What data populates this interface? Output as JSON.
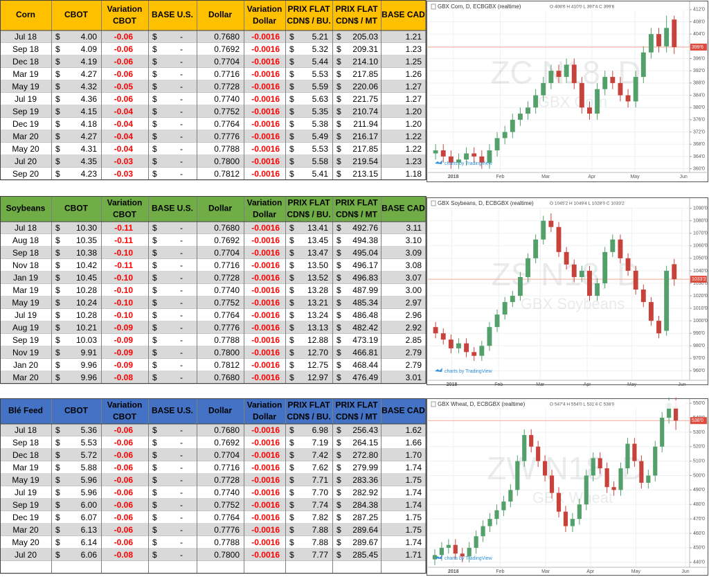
{
  "tables": [
    {
      "header_color": "#FFC000",
      "currency": "$",
      "dash": "-",
      "headers": [
        "Corn",
        "CBOT",
        [
          "Variation",
          "CBOT"
        ],
        "BASE U.S.",
        "Dollar",
        [
          "Variation",
          "Dollar"
        ],
        [
          "PRIX FLAT",
          "CDN$ / BU."
        ],
        [
          "PRIX FLAT",
          "CDN$ / MT"
        ],
        "BASE CAD"
      ],
      "rows": [
        [
          "Jul 18",
          "4.00",
          "-0.06",
          "0.7680",
          "-0.0016",
          "5.21",
          "205.03",
          "1.21"
        ],
        [
          "Sep 18",
          "4.09",
          "-0.06",
          "0.7692",
          "-0.0016",
          "5.32",
          "209.31",
          "1.23"
        ],
        [
          "Dec 18",
          "4.19",
          "-0.06",
          "0.7704",
          "-0.0016",
          "5.44",
          "214.10",
          "1.25"
        ],
        [
          "Mar 19",
          "4.27",
          "-0.06",
          "0.7716",
          "-0.0016",
          "5.53",
          "217.85",
          "1.26"
        ],
        [
          "May 19",
          "4.32",
          "-0.05",
          "0.7728",
          "-0.0016",
          "5.59",
          "220.06",
          "1.27"
        ],
        [
          "Jul 19",
          "4.36",
          "-0.06",
          "0.7740",
          "-0.0016",
          "5.63",
          "221.75",
          "1.27"
        ],
        [
          "Sep 19",
          "4.15",
          "-0.04",
          "0.7752",
          "-0.0016",
          "5.35",
          "210.74",
          "1.20"
        ],
        [
          "Dec 19",
          "4.18",
          "-0.04",
          "0.7764",
          "-0.0016",
          "5.38",
          "211.94",
          "1.20"
        ],
        [
          "Mar 20",
          "4.27",
          "-0.04",
          "0.7776",
          "-0.0016",
          "5.49",
          "216.17",
          "1.22"
        ],
        [
          "May 20",
          "4.31",
          "-0.04",
          "0.7788",
          "-0.0016",
          "5.53",
          "217.85",
          "1.22"
        ],
        [
          "Jul 20",
          "4.35",
          "-0.03",
          "0.7800",
          "-0.0016",
          "5.58",
          "219.54",
          "1.23"
        ],
        [
          "Sep 20",
          "4.23",
          "-0.03",
          "0.7812",
          "-0.0016",
          "5.41",
          "213.15",
          "1.18"
        ]
      ]
    },
    {
      "header_color": "#70AD47",
      "currency": "$",
      "dash": "-",
      "headers": [
        "Soybeans",
        "CBOT",
        [
          "Variation",
          "CBOT"
        ],
        "BASE U.S.",
        "Dollar",
        [
          "Variation",
          "Dollar"
        ],
        [
          "PRIX FLAT",
          "CDN$ / BU."
        ],
        [
          "PRIX FLAT",
          "CDN$ / MT"
        ],
        "BASE CAD"
      ],
      "rows": [
        [
          "Jul 18",
          "10.30",
          "-0.11",
          "0.7680",
          "-0.0016",
          "13.41",
          "492.76",
          "3.11"
        ],
        [
          "Aug 18",
          "10.35",
          "-0.11",
          "0.7692",
          "-0.0016",
          "13.45",
          "494.38",
          "3.10"
        ],
        [
          "Sep 18",
          "10.38",
          "-0.10",
          "0.7704",
          "-0.0016",
          "13.47",
          "495.04",
          "3.09"
        ],
        [
          "Nov 18",
          "10.42",
          "-0.11",
          "0.7716",
          "-0.0016",
          "13.50",
          "496.17",
          "3.08"
        ],
        [
          "Jan 19",
          "10.45",
          "-0.10",
          "0.7728",
          "-0.0016",
          "13.52",
          "496.83",
          "3.07"
        ],
        [
          "Mar 19",
          "10.28",
          "-0.10",
          "0.7740",
          "-0.0016",
          "13.28",
          "487.99",
          "3.00"
        ],
        [
          "May 19",
          "10.24",
          "-0.10",
          "0.7752",
          "-0.0016",
          "13.21",
          "485.34",
          "2.97"
        ],
        [
          "Jul 19",
          "10.28",
          "-0.10",
          "0.7764",
          "-0.0016",
          "13.24",
          "486.48",
          "2.96"
        ],
        [
          "Aug 19",
          "10.21",
          "-0.09",
          "0.7776",
          "-0.0016",
          "13.13",
          "482.42",
          "2.92"
        ],
        [
          "Sep 19",
          "10.03",
          "-0.09",
          "0.7788",
          "-0.0016",
          "12.88",
          "473.19",
          "2.85"
        ],
        [
          "Nov 19",
          "9.91",
          "-0.09",
          "0.7800",
          "-0.0016",
          "12.70",
          "466.81",
          "2.79"
        ],
        [
          "Jan 20",
          "9.96",
          "-0.09",
          "0.7812",
          "-0.0016",
          "12.75",
          "468.44",
          "2.79"
        ],
        [
          "Mar 20",
          "9.96",
          "-0.08",
          "0.7680",
          "-0.0016",
          "12.97",
          "476.49",
          "3.01"
        ]
      ]
    },
    {
      "header_color": "#4472C4",
      "currency": "$",
      "dash": "-",
      "headers": [
        "Blé Feed",
        "CBOT",
        [
          "Variation",
          "CBOT"
        ],
        "BASE U.S.",
        "Dollar",
        [
          "Variation",
          "Dollar"
        ],
        [
          "PRIX FLAT",
          "CDN$ / BU."
        ],
        [
          "PRIX FLAT",
          "CDN$ / MT"
        ],
        "BASE CAD"
      ],
      "rows": [
        [
          "Jul 18",
          "5.36",
          "-0.06",
          "0.7680",
          "-0.0016",
          "6.98",
          "256.43",
          "1.62"
        ],
        [
          "Sep 18",
          "5.53",
          "-0.06",
          "0.7692",
          "-0.0016",
          "7.19",
          "264.15",
          "1.66"
        ],
        [
          "Dec 18",
          "5.72",
          "-0.06",
          "0.7704",
          "-0.0016",
          "7.42",
          "272.80",
          "1.70"
        ],
        [
          "Mar 19",
          "5.88",
          "-0.06",
          "0.7716",
          "-0.0016",
          "7.62",
          "279.99",
          "1.74"
        ],
        [
          "May 19",
          "5.96",
          "-0.06",
          "0.7728",
          "-0.0016",
          "7.71",
          "283.36",
          "1.75"
        ],
        [
          "Jul 19",
          "5.96",
          "-0.06",
          "0.7740",
          "-0.0016",
          "7.70",
          "282.92",
          "1.74"
        ],
        [
          "Sep 19",
          "6.00",
          "-0.06",
          "0.7752",
          "-0.0016",
          "7.74",
          "284.38",
          "1.74"
        ],
        [
          "Dec 19",
          "6.07",
          "-0.06",
          "0.7764",
          "-0.0016",
          "7.82",
          "287.25",
          "1.75"
        ],
        [
          "Mar 20",
          "6.13",
          "-0.06",
          "0.7776",
          "-0.0016",
          "7.88",
          "289.64",
          "1.75"
        ],
        [
          "May 20",
          "6.14",
          "-0.06",
          "0.7788",
          "-0.0016",
          "7.88",
          "289.67",
          "1.74"
        ],
        [
          "Jul 20",
          "6.06",
          "-0.08",
          "0.7800",
          "-0.0016",
          "7.77",
          "285.45",
          "1.71"
        ]
      ]
    }
  ],
  "chart_data": [
    {
      "type": "candlestick",
      "title": "GBX Corn, D, ECBGBX (realtime)",
      "ohlc_label": "O 408'6 H 410'0 L 397'4 C 399'6",
      "watermark": "ZC N18, D",
      "watermark_subtitle": "GBX Corn",
      "credit": "charts by TradingView",
      "up_color": "#53a06a",
      "down_color": "#c8423c",
      "grid": true,
      "open": [
        365,
        366,
        364,
        362,
        363,
        365,
        364,
        362,
        366,
        370,
        372,
        376,
        378,
        380,
        384,
        388,
        392,
        390,
        394,
        388,
        380,
        378,
        386,
        390,
        388,
        384,
        382,
        390,
        398,
        404,
        400,
        408.75
      ],
      "high": [
        368,
        368,
        366,
        365,
        367,
        367,
        366,
        368,
        372,
        374,
        378,
        380,
        382,
        386,
        390,
        394,
        394,
        396,
        396,
        390,
        382,
        388,
        392,
        392,
        390,
        386,
        392,
        400,
        406,
        406,
        410,
        410
      ],
      "low": [
        363,
        362,
        360,
        360,
        361,
        362,
        360,
        360,
        364,
        368,
        370,
        374,
        376,
        378,
        382,
        386,
        388,
        388,
        386,
        378,
        376,
        376,
        384,
        386,
        382,
        380,
        380,
        388,
        396,
        398,
        398,
        397.5
      ],
      "close": [
        366,
        364,
        362,
        363,
        365,
        364,
        362,
        366,
        370,
        372,
        376,
        378,
        380,
        384,
        388,
        392,
        390,
        394,
        388,
        380,
        378,
        386,
        390,
        388,
        384,
        382,
        390,
        398,
        404,
        400,
        406,
        399.75
      ],
      "last_price": {
        "value": 399.75,
        "label": "399'6"
      },
      "xlim": [
        -1,
        33
      ],
      "xticks": [
        {
          "value": 2.3,
          "label": "2018"
        },
        {
          "value": 8.4,
          "label": "Feb"
        },
        {
          "value": 14.3,
          "label": "Mar"
        },
        {
          "value": 20.3,
          "label": "Apr"
        },
        {
          "value": 25.9,
          "label": "May"
        },
        {
          "value": 32.2,
          "label": "Jun"
        }
      ],
      "ylim": [
        359,
        414
      ],
      "yticks": [
        {
          "value": 412,
          "label": "412'0"
        },
        {
          "value": 408,
          "label": "408'0"
        },
        {
          "value": 404,
          "label": "404'0"
        },
        {
          "value": 400,
          "label": "400'0"
        },
        {
          "value": 396,
          "label": "396'0"
        },
        {
          "value": 392,
          "label": "392'0"
        },
        {
          "value": 388,
          "label": "388'0"
        },
        {
          "value": 384,
          "label": "384'0"
        },
        {
          "value": 380,
          "label": "380'0"
        },
        {
          "value": 376,
          "label": "376'0"
        },
        {
          "value": 372,
          "label": "372'0"
        },
        {
          "value": 368,
          "label": "368'0"
        },
        {
          "value": 364,
          "label": "364'0"
        },
        {
          "value": 360,
          "label": "360'0"
        }
      ]
    },
    {
      "type": "candlestick",
      "title": "GBX Soybeans, D, ECBGBX (realtime)",
      "ohlc_label": "O 1045'2 H 1049'4 L 1028'0 C 1033'2",
      "watermark": "ZS N18, D",
      "watermark_subtitle": "GBX Soybeans",
      "credit": "charts by TradingView",
      "up_color": "#53a06a",
      "down_color": "#c8423c",
      "grid": true,
      "open": [
        995,
        990,
        985,
        978,
        982,
        975,
        972,
        980,
        995,
        1005,
        1015,
        1020,
        1035,
        1050,
        1065,
        1080,
        1075,
        1055,
        1045,
        1035,
        1040,
        1020,
        1030,
        1055,
        1065,
        1050,
        1040,
        1025,
        1015,
        1000,
        992,
        1045.25
      ],
      "high": [
        999,
        994,
        989,
        986,
        986,
        979,
        984,
        999,
        1009,
        1019,
        1024,
        1039,
        1054,
        1069,
        1084,
        1086,
        1079,
        1059,
        1049,
        1044,
        1044,
        1034,
        1059,
        1069,
        1069,
        1054,
        1044,
        1029,
        1019,
        1004,
        1044,
        1049.5
      ],
      "low": [
        986,
        981,
        974,
        974,
        971,
        968,
        968,
        976,
        991,
        1001,
        1011,
        1016,
        1031,
        1046,
        1061,
        1071,
        1051,
        1041,
        1031,
        1031,
        1016,
        1016,
        1026,
        1051,
        1046,
        1036,
        1021,
        1011,
        996,
        986,
        988,
        1028
      ],
      "close": [
        990,
        985,
        978,
        982,
        975,
        972,
        980,
        995,
        1005,
        1015,
        1020,
        1035,
        1050,
        1065,
        1080,
        1075,
        1055,
        1045,
        1035,
        1040,
        1020,
        1030,
        1055,
        1065,
        1050,
        1040,
        1025,
        1015,
        1000,
        990,
        1040,
        1033.25
      ],
      "last_price": {
        "value": 1033.25,
        "label": "1033'2"
      },
      "xlim": [
        -1,
        33
      ],
      "xticks": [
        {
          "value": 2.1,
          "label": "2018"
        },
        {
          "value": 8.2,
          "label": "Feb"
        },
        {
          "value": 13.6,
          "label": "Mar"
        },
        {
          "value": 19.7,
          "label": "Apr"
        },
        {
          "value": 25.5,
          "label": "May"
        },
        {
          "value": 32.0,
          "label": "Jun"
        }
      ],
      "ylim": [
        953,
        1097
      ],
      "yticks": [
        {
          "value": 1090,
          "label": "1090'0"
        },
        {
          "value": 1080,
          "label": "1080'0"
        },
        {
          "value": 1070,
          "label": "1070'0"
        },
        {
          "value": 1060,
          "label": "1060'0"
        },
        {
          "value": 1050,
          "label": "1050'0"
        },
        {
          "value": 1040,
          "label": "1040'0"
        },
        {
          "value": 1030,
          "label": "1030'0"
        },
        {
          "value": 1020,
          "label": "1020'0"
        },
        {
          "value": 1010,
          "label": "1010'0"
        },
        {
          "value": 1000,
          "label": "1000'0"
        },
        {
          "value": 990,
          "label": "990'0"
        },
        {
          "value": 980,
          "label": "980'0"
        },
        {
          "value": 970,
          "label": "970'0"
        },
        {
          "value": 960,
          "label": "960'0"
        }
      ]
    },
    {
      "type": "candlestick",
      "title": "GBX Wheat, D, ECBGBX (realtime)",
      "ohlc_label": "O 547'4 H 554'0 L 531'4 C 538'0",
      "watermark": "ZW N18, D",
      "watermark_subtitle": "GBX Wheat",
      "credit": "charts by TradingView",
      "up_color": "#53a06a",
      "down_color": "#c8423c",
      "grid": true,
      "open": [
        442,
        445,
        450,
        452,
        446,
        444,
        450,
        458,
        465,
        470,
        476,
        482,
        490,
        510,
        528,
        520,
        510,
        500,
        488,
        475,
        465,
        470,
        480,
        500,
        512,
        505,
        492,
        490,
        505,
        522,
        510,
        495,
        500,
        520,
        540,
        547.5
      ],
      "high": [
        449,
        454,
        456,
        456,
        450,
        454,
        462,
        469,
        474,
        480,
        486,
        494,
        514,
        532,
        532,
        524,
        514,
        504,
        492,
        479,
        474,
        484,
        504,
        516,
        516,
        509,
        496,
        509,
        526,
        526,
        514,
        504,
        524,
        544,
        554,
        554
      ],
      "low": [
        438,
        441,
        446,
        442,
        440,
        440,
        446,
        454,
        461,
        466,
        472,
        478,
        486,
        506,
        516,
        506,
        496,
        484,
        471,
        461,
        461,
        466,
        476,
        496,
        501,
        488,
        486,
        486,
        501,
        506,
        491,
        491,
        496,
        516,
        536,
        531.5
      ],
      "close": [
        445,
        450,
        452,
        446,
        444,
        450,
        458,
        465,
        470,
        476,
        482,
        490,
        510,
        528,
        520,
        510,
        500,
        488,
        475,
        465,
        470,
        480,
        500,
        512,
        505,
        492,
        490,
        505,
        522,
        510,
        495,
        500,
        520,
        540,
        550,
        538
      ],
      "last_price": {
        "value": 538,
        "label": "538'0"
      },
      "xlim": [
        -1,
        37
      ],
      "xticks": [
        {
          "value": 2.7,
          "label": "2018"
        },
        {
          "value": 9.5,
          "label": "Feb"
        },
        {
          "value": 16.1,
          "label": "Mar"
        },
        {
          "value": 22.6,
          "label": "Apr"
        },
        {
          "value": 29.2,
          "label": "May"
        },
        {
          "value": 36.4,
          "label": "Jun"
        }
      ],
      "ylim": [
        437,
        552
      ],
      "yticks": [
        {
          "value": 550,
          "label": "550'0"
        },
        {
          "value": 540,
          "label": "540'0"
        },
        {
          "value": 530,
          "label": "530'0"
        },
        {
          "value": 520,
          "label": "520'0"
        },
        {
          "value": 510,
          "label": "510'0"
        },
        {
          "value": 500,
          "label": "500'0"
        },
        {
          "value": 490,
          "label": "490'0"
        },
        {
          "value": 480,
          "label": "480'0"
        },
        {
          "value": 470,
          "label": "470'0"
        },
        {
          "value": 460,
          "label": "460'0"
        },
        {
          "value": 450,
          "label": "450'0"
        },
        {
          "value": 440,
          "label": "440'0"
        }
      ]
    }
  ]
}
